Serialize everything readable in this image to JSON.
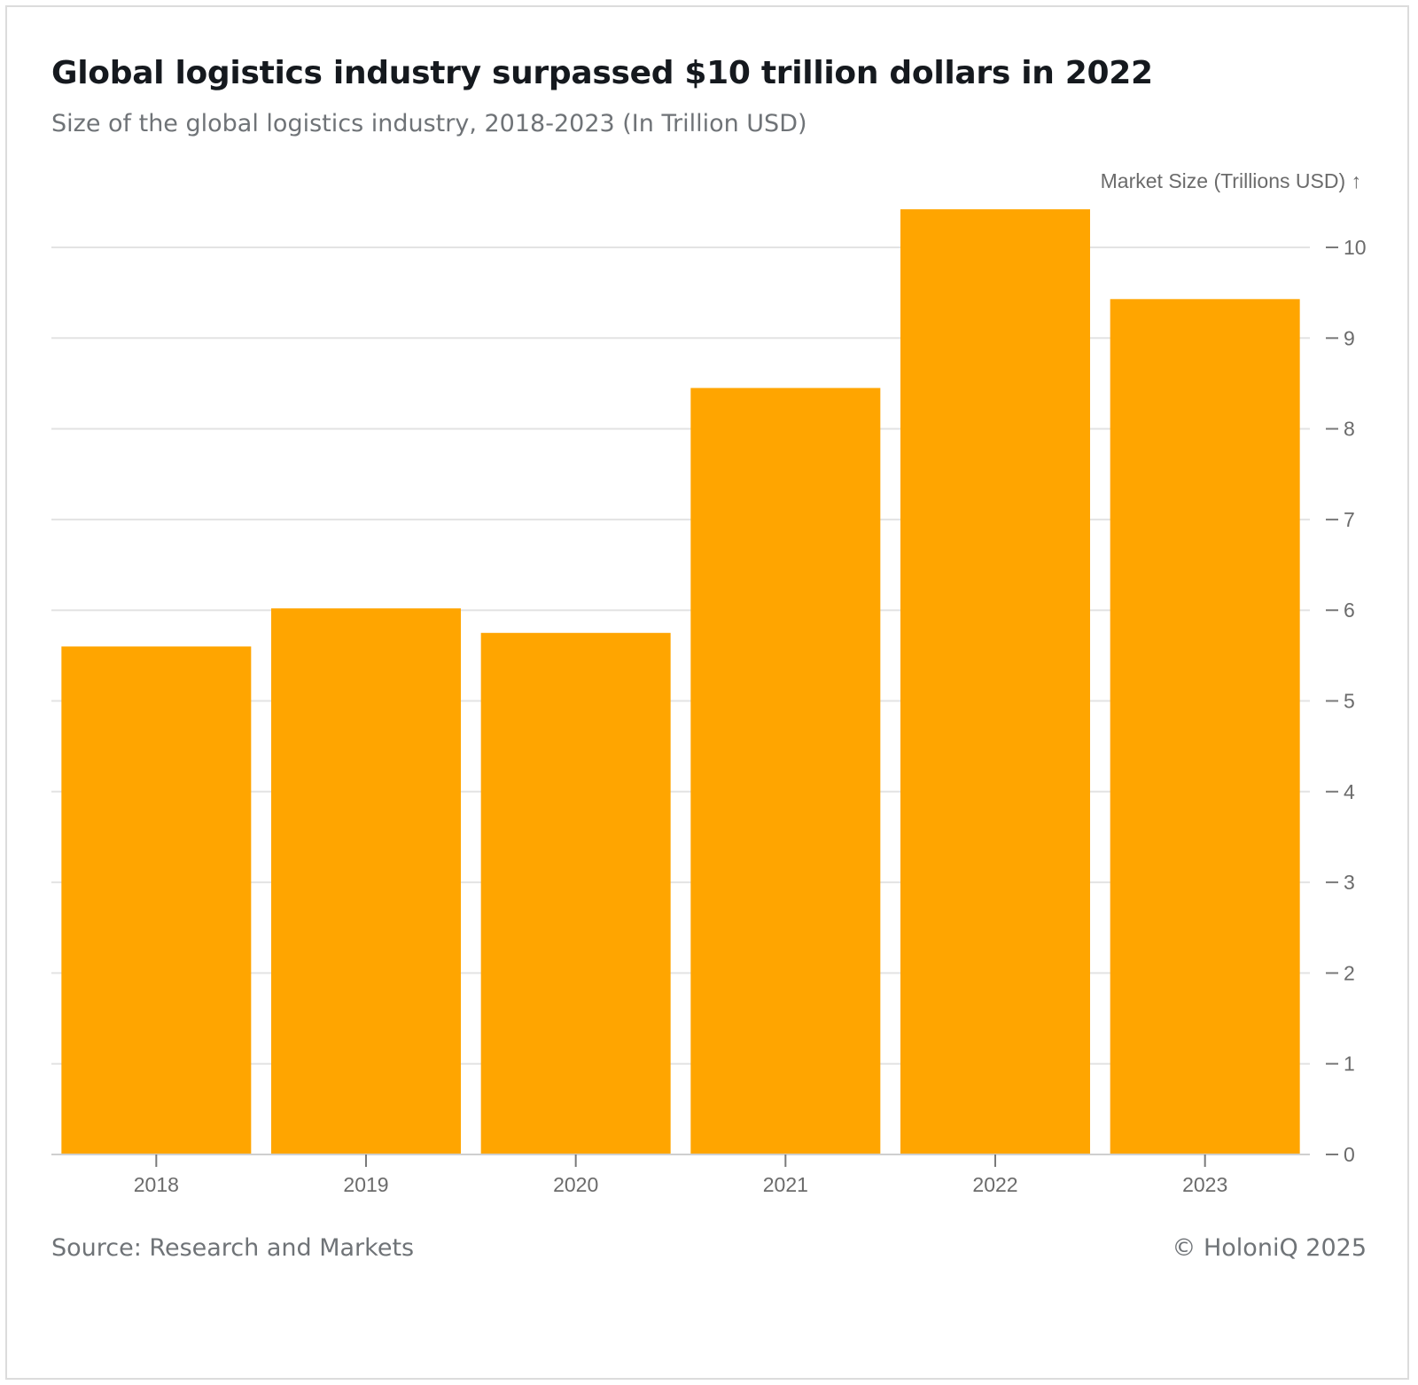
{
  "header": {
    "title": "Global logistics industry surpassed $10 trillion dollars in 2022",
    "subtitle": "Size of the global logistics industry, 2018-2023 (In Trillion USD)"
  },
  "footer": {
    "source": "Source: Research and Markets",
    "copyright": "© HoloniQ 2025"
  },
  "colors": {
    "bar": "#ffa500",
    "grid": "#e3e3e3",
    "axis_text": "#6b6b6b"
  },
  "chart_data": {
    "type": "bar",
    "title": "Global logistics industry surpassed $10 trillion dollars in 2022",
    "subtitle": "Size of the global logistics industry, 2018-2023 (In Trillion USD)",
    "categories": [
      "2018",
      "2019",
      "2020",
      "2021",
      "2022",
      "2023"
    ],
    "values": [
      5.6,
      6.02,
      5.75,
      8.45,
      10.42,
      9.43
    ],
    "xlabel": "",
    "ylabel": "Market Size (Trillions USD) ↑",
    "ylim": [
      0,
      10
    ],
    "yticks": [
      0,
      1,
      2,
      3,
      4,
      5,
      6,
      7,
      8,
      9,
      10
    ],
    "y_axis_position": "right",
    "grid": true
  }
}
